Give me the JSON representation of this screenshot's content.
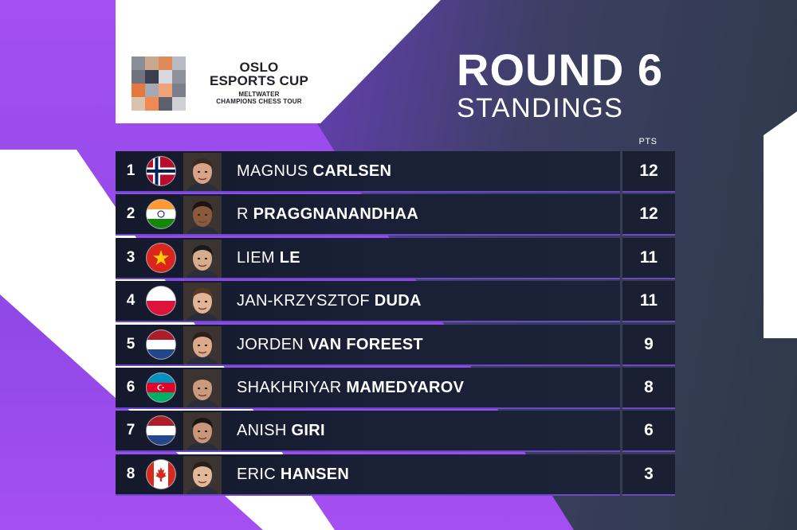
{
  "header": {
    "logo_title_line1": "OSLO",
    "logo_title_line2": "ESPORTS CUP",
    "logo_sub_line1": "MELTWATER",
    "logo_sub_line2": "CHAMPIONS CHESS TOUR",
    "round": "ROUND 6",
    "subtitle": "STANDINGS"
  },
  "table": {
    "pts_header": "PTS",
    "rows": [
      {
        "rank": "1",
        "first": "MAGNUS",
        "last": "CARLSEN",
        "pts": "12",
        "flag": "norway-flag-icon"
      },
      {
        "rank": "2",
        "first": "R",
        "last": "PRAGGNANANDHAA",
        "pts": "12",
        "flag": "india-flag-icon"
      },
      {
        "rank": "3",
        "first": "LIEM",
        "last": "LE",
        "pts": "11",
        "flag": "vietnam-flag-icon"
      },
      {
        "rank": "4",
        "first": "JAN-KRZYSZTOF",
        "last": "DUDA",
        "pts": "11",
        "flag": "poland-flag-icon"
      },
      {
        "rank": "5",
        "first": "JORDEN",
        "last": "VAN FOREEST",
        "pts": "9",
        "flag": "netherlands-flag-icon"
      },
      {
        "rank": "6",
        "first": "SHAKHRIYAR",
        "last": "MAMEDYAROV",
        "pts": "8",
        "flag": "azerbaijan-flag-icon"
      },
      {
        "rank": "7",
        "first": "ANISH",
        "last": "GIRI",
        "pts": "6",
        "flag": "netherlands-flag-icon"
      },
      {
        "rank": "8",
        "first": "ERIC",
        "last": "HANSEN",
        "pts": "3",
        "flag": "canada-flag-icon"
      }
    ]
  },
  "colors": {
    "accent_purple": "#9b4df0",
    "row_bg": "#1a2036",
    "divider": "#6a49c9"
  }
}
